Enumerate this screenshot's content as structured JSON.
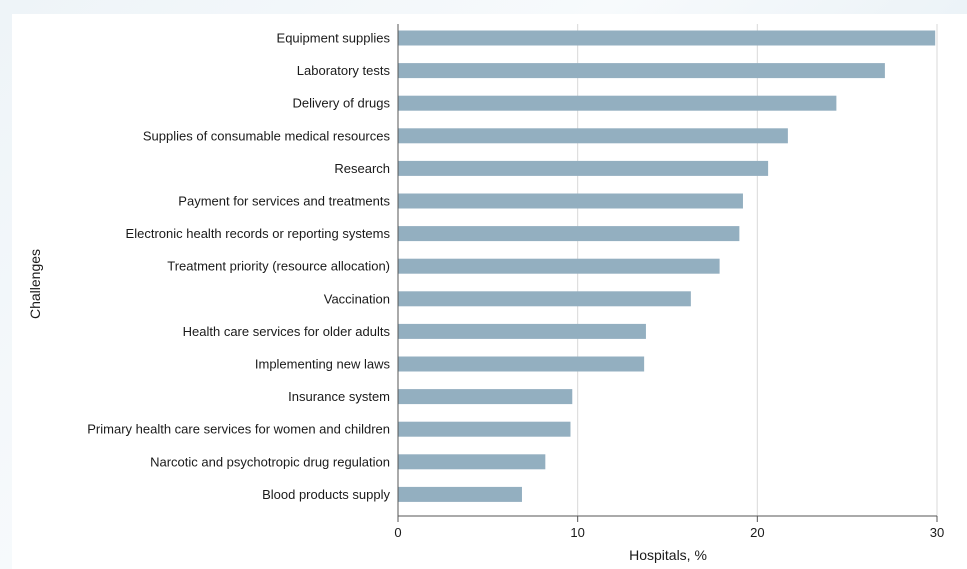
{
  "chart_data": {
    "type": "bar",
    "orientation": "horizontal",
    "ylabel": "Challenges",
    "xlabel": "Hospitals, %",
    "xlim": [
      0,
      30
    ],
    "xticks": [
      0,
      10,
      20,
      30
    ],
    "grid": "vertical",
    "bar_color": "#93afc0",
    "categories": [
      "Equipment supplies",
      "Laboratory tests",
      "Delivery of drugs",
      "Supplies of consumable medical resources",
      "Research",
      "Payment for services and treatments",
      "Electronic health records or reporting systems",
      "Treatment priority (resource allocation)",
      "Vaccination",
      "Health care services for older adults",
      "Implementing new laws",
      "Insurance system",
      "Primary health care services for women and children",
      "Narcotic and psychotropic drug regulation",
      "Blood products supply"
    ],
    "values": [
      29.9,
      27.1,
      24.4,
      21.7,
      20.6,
      19.2,
      19.0,
      17.9,
      16.3,
      13.8,
      13.7,
      9.7,
      9.6,
      8.2,
      6.9
    ]
  }
}
